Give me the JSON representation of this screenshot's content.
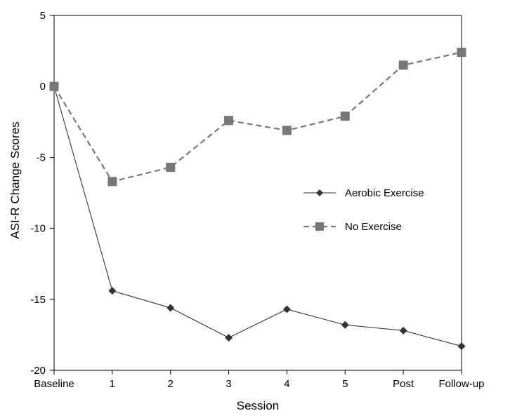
{
  "chart_data": {
    "type": "line",
    "title": "",
    "xlabel": "Session",
    "ylabel": "ASI-R Change Scores",
    "categories": [
      "Baseline",
      "1",
      "2",
      "3",
      "4",
      "5",
      "Post",
      "Follow-up"
    ],
    "ylim": [
      -20,
      5
    ],
    "yticks": [
      5,
      0,
      -5,
      -10,
      -15,
      -20
    ],
    "grid": false,
    "legend_position": "right-middle",
    "series": [
      {
        "name": "Aerobic Exercise",
        "values": [
          0,
          -14.4,
          -15.6,
          -17.7,
          -15.7,
          -16.8,
          -17.2,
          -18.3
        ],
        "color": "#333333",
        "marker": "diamond",
        "line_style": "solid"
      },
      {
        "name": "No Exercise",
        "values": [
          0,
          -6.7,
          -5.7,
          -2.4,
          -3.1,
          -2.1,
          1.5,
          2.4
        ],
        "color": "#777777",
        "marker": "square",
        "line_style": "dashed"
      }
    ]
  }
}
